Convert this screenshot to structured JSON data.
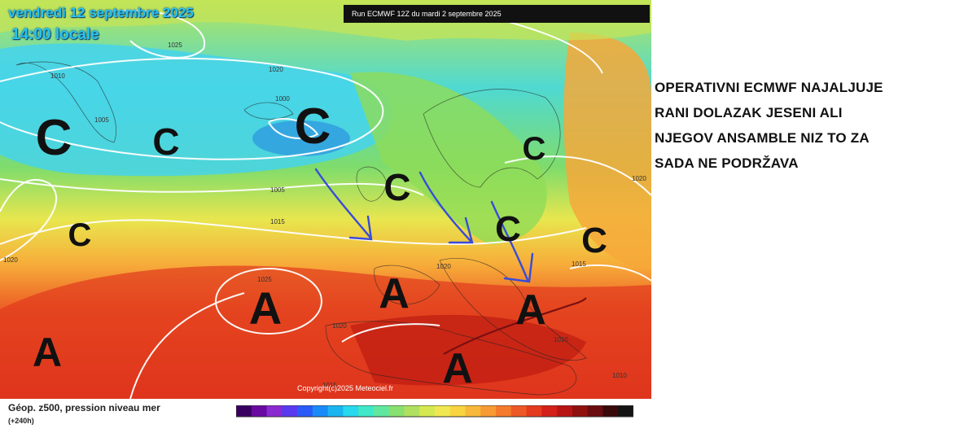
{
  "map": {
    "date_label": "vendredi 12 septembre 2025",
    "time_label": "14:00 locale",
    "run_label": "Run ECMWF 12Z du mardi 2 septembre 2025",
    "copyright": "Copyright(c)2025 Meteociel.fr",
    "legend_title": "Géop. z500, pression niveau mer",
    "legend_subtitle": "(+240h)",
    "isobar_labels": [
      "1025",
      "1020",
      "1010",
      "1005",
      "1005",
      "1000",
      "1005",
      "1010",
      "1015",
      "1020",
      "1020",
      "1025",
      "1020",
      "1015",
      "1010",
      "1010",
      "1015",
      "1020"
    ],
    "pressure_markers": [
      "C",
      "C",
      "C",
      "C",
      "C",
      "C",
      "C",
      "A",
      "A",
      "A",
      "A",
      "A",
      "A"
    ],
    "colors": {
      "low_center": "#2f8fd8",
      "cold": "#36d7ef",
      "mid": "#8ee06a",
      "warm": "#f6d23c",
      "hot": "#e8401e",
      "very_hot": "#c9170f",
      "arrows": "#3a4bd8",
      "front": "#7a1010"
    },
    "color_scale": [
      "#3a0060",
      "#6a0aa0",
      "#8a2ad0",
      "#5a3af0",
      "#2a5af8",
      "#1a8af8",
      "#1ab4f0",
      "#28d8ee",
      "#40e8c8",
      "#60e8a0",
      "#88e070",
      "#b0e060",
      "#d6e850",
      "#f0e850",
      "#f8d440",
      "#f8b83a",
      "#f89a34",
      "#f47a2c",
      "#ee5826",
      "#e43a1e",
      "#d42018",
      "#b81414",
      "#901010",
      "#6a0c10",
      "#3a0a0a",
      "#141414"
    ]
  },
  "commentary": {
    "lines": [
      "OPERATIVNI ECMWF NAJALJUJE",
      "RANI DOLAZAK JESENI ALI",
      "NJEGOV ANSAMBLE NIZ TO ZA",
      "SADA NE PODRŽAVA"
    ]
  }
}
